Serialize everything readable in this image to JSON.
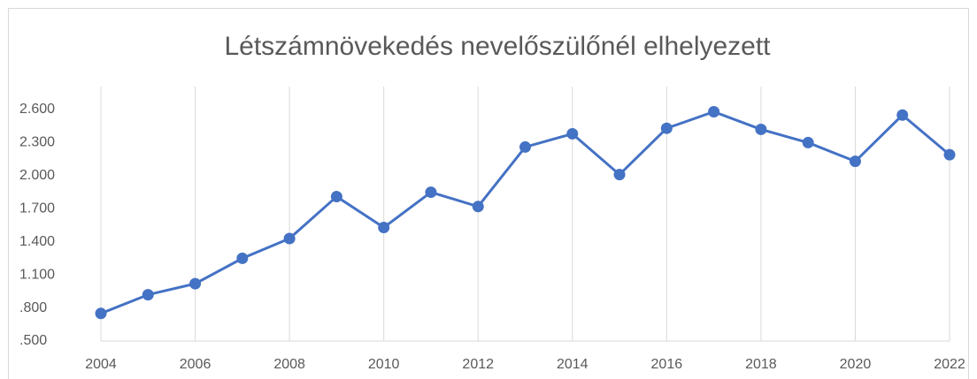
{
  "chart_data": {
    "type": "line",
    "title": "Létszámnövekedés nevelőszülőnél elhelyezett",
    "x": [
      2004,
      2005,
      2006,
      2007,
      2008,
      2009,
      2010,
      2011,
      2012,
      2013,
      2014,
      2015,
      2016,
      2017,
      2018,
      2019,
      2020,
      2021,
      2022
    ],
    "values": [
      750,
      920,
      1020,
      1250,
      1430,
      1810,
      1530,
      1850,
      1720,
      2260,
      2380,
      2010,
      2430,
      2580,
      2420,
      2300,
      2130,
      2550,
      2190
    ],
    "color": "#4472c4",
    "xlim": [
      2004,
      2022
    ],
    "xticks": [
      2004,
      2006,
      2008,
      2010,
      2012,
      2014,
      2016,
      2018,
      2020,
      2022
    ],
    "ylim": [
      500,
      2600
    ],
    "yticks": [
      {
        "value": 500,
        "label": ".500"
      },
      {
        "value": 800,
        "label": ".800"
      },
      {
        "value": 1100,
        "label": "1.100"
      },
      {
        "value": 1400,
        "label": "1.400"
      },
      {
        "value": 1700,
        "label": "1.700"
      },
      {
        "value": 2000,
        "label": "2.000"
      },
      {
        "value": 2300,
        "label": "2.300"
      },
      {
        "value": 2600,
        "label": "2.600"
      }
    ],
    "xgrid": true
  }
}
